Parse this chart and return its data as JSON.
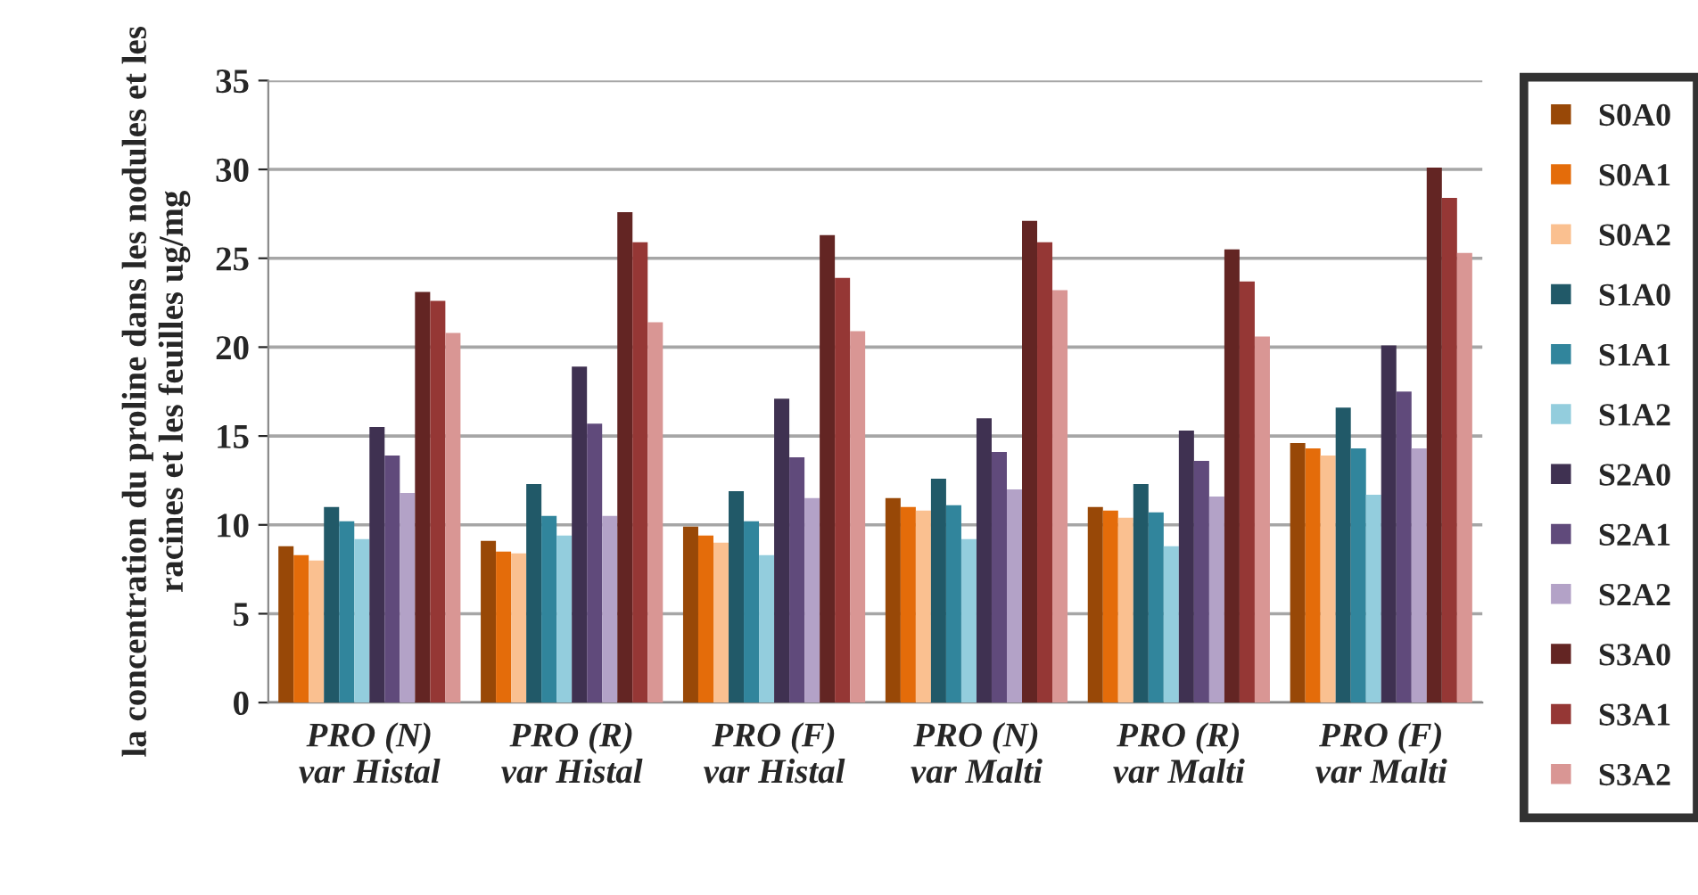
{
  "chart_data": {
    "type": "bar",
    "ylabel": "la concentration du proline dans les nodules et les racines et les feuilles ug/mg",
    "categories": [
      "PRO (N)\nvar Histal",
      "PRO (R)\nvar Histal",
      "PRO (F)\nvar Histal",
      "PRO (N)\nvar Malti",
      "PRO (R)\nvar Malti",
      "PRO (F)\nvar Malti"
    ],
    "series": [
      {
        "name": "S0A0",
        "color": "#984807",
        "values": [
          8.8,
          9.1,
          9.9,
          11.5,
          11.0,
          14.6
        ]
      },
      {
        "name": "S0A1",
        "color": "#e46c0a",
        "values": [
          8.3,
          8.5,
          9.4,
          11.0,
          10.8,
          14.3
        ]
      },
      {
        "name": "S0A2",
        "color": "#fac090",
        "values": [
          8.0,
          8.4,
          9.0,
          10.8,
          10.4,
          13.9
        ]
      },
      {
        "name": "S1A0",
        "color": "#215968",
        "values": [
          11.0,
          12.3,
          11.9,
          12.6,
          12.3,
          16.6
        ]
      },
      {
        "name": "S1A1",
        "color": "#31859c",
        "values": [
          10.2,
          10.5,
          10.2,
          11.1,
          10.7,
          14.3
        ]
      },
      {
        "name": "S1A2",
        "color": "#93cddd",
        "values": [
          9.2,
          9.4,
          8.3,
          9.2,
          8.8,
          11.7
        ]
      },
      {
        "name": "S2A0",
        "color": "#3f3151",
        "values": [
          15.5,
          18.9,
          17.1,
          16.0,
          15.3,
          20.1
        ]
      },
      {
        "name": "S2A1",
        "color": "#604a7b",
        "values": [
          13.9,
          15.7,
          13.8,
          14.1,
          13.6,
          17.5
        ]
      },
      {
        "name": "S2A2",
        "color": "#b3a2c7",
        "values": [
          11.8,
          10.5,
          11.5,
          12.0,
          11.6,
          14.3
        ]
      },
      {
        "name": "S3A0",
        "color": "#632523",
        "values": [
          23.1,
          27.6,
          26.3,
          27.1,
          25.5,
          30.1
        ]
      },
      {
        "name": "S3A1",
        "color": "#953735",
        "values": [
          22.6,
          25.9,
          23.9,
          25.9,
          23.7,
          28.4
        ]
      },
      {
        "name": "S3A2",
        "color": "#d99694",
        "values": [
          20.8,
          21.4,
          20.9,
          23.2,
          20.6,
          25.3
        ]
      }
    ],
    "ylim": [
      0,
      35
    ],
    "yticks": [
      0,
      5,
      10,
      15,
      20,
      25,
      30,
      35
    ],
    "grid": "y",
    "legend": "right"
  }
}
